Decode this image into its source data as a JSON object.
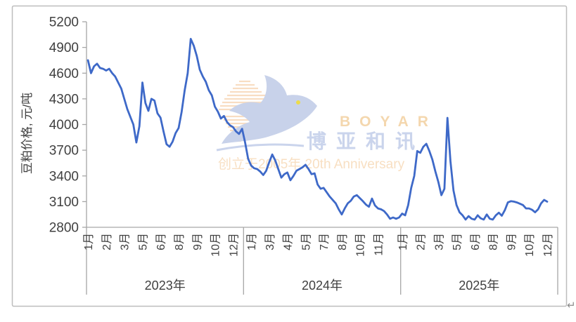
{
  "window": {
    "return_mark": "↵"
  },
  "watermark": {
    "brand_en": "BOYAR",
    "brand_cn": "博亚和讯",
    "anniversary": "创立于2005年 20th Anniversary"
  },
  "chart_data": {
    "type": "line",
    "title": "",
    "ylabel": "豆粕价格, 元/吨",
    "ylim": [
      2800,
      5200
    ],
    "y_ticks": [
      2800,
      3100,
      3400,
      3700,
      4000,
      4300,
      4600,
      4900,
      5200
    ],
    "grid": false,
    "legend": "none",
    "series_name": "豆粕价格",
    "colors": {
      "line": "#3E69C8",
      "axis": "#A6A6A6",
      "text": "#404040",
      "border": "#BDBDBD"
    },
    "years": [
      {
        "label": "2023年",
        "month_labels": [
          [
            "1月",
            1
          ],
          [
            "2月",
            7
          ],
          [
            "3月",
            13
          ],
          [
            "5月",
            19
          ],
          [
            "6月",
            25
          ],
          [
            "8月",
            31
          ],
          [
            "9月",
            37
          ],
          [
            "10月",
            43
          ],
          [
            "12月",
            49
          ]
        ],
        "weekly_values": [
          4750,
          4600,
          4680,
          4710,
          4660,
          4650,
          4630,
          4650,
          4600,
          4560,
          4490,
          4420,
          4300,
          4180,
          4090,
          4000,
          3790,
          3980,
          4490,
          4250,
          4160,
          4300,
          4280,
          4130,
          4080,
          3920,
          3770,
          3740,
          3800,
          3900,
          3960,
          4150,
          4400,
          4600,
          5000,
          4920,
          4800,
          4640,
          4560,
          4500,
          4400,
          4340,
          4210,
          4150,
          4070,
          4100,
          4030,
          3990,
          3970,
          3920,
          3890,
          3950
        ]
      },
      {
        "label": "2024年",
        "month_labels": [
          [
            "1月",
            3
          ],
          [
            "3月",
            9
          ],
          [
            "4月",
            15
          ],
          [
            "5月",
            21
          ],
          [
            "7月",
            27
          ],
          [
            "8月",
            33
          ],
          [
            "10月",
            39
          ],
          [
            "11月",
            45
          ]
        ],
        "weekly_values": [
          3790,
          3600,
          3520,
          3490,
          3480,
          3450,
          3410,
          3460,
          3560,
          3650,
          3580,
          3480,
          3380,
          3420,
          3440,
          3350,
          3400,
          3460,
          3480,
          3500,
          3530,
          3480,
          3420,
          3430,
          3300,
          3250,
          3260,
          3210,
          3160,
          3120,
          3080,
          3010,
          2950,
          3020,
          3080,
          3110,
          3160,
          3175,
          3140,
          3105,
          3065,
          3040,
          3135,
          3055,
          3020,
          3010,
          2990,
          2950,
          2900,
          2915,
          2900,
          2915
        ]
      },
      {
        "label": "2025年",
        "month_labels": [
          [
            "1月",
            1
          ],
          [
            "2月",
            7
          ],
          [
            "3月",
            13
          ],
          [
            "5月",
            19
          ],
          [
            "6月",
            25
          ],
          [
            "8月",
            31
          ],
          [
            "9月",
            37
          ],
          [
            "10月",
            43
          ],
          [
            "12月",
            49
          ]
        ],
        "weekly_values": [
          2960,
          2940,
          3060,
          3260,
          3400,
          3690,
          3670,
          3740,
          3775,
          3690,
          3590,
          3450,
          3325,
          3175,
          3250,
          4078,
          3570,
          3230,
          3060,
          2975,
          2940,
          2890,
          2930,
          2900,
          2890,
          2940,
          2905,
          2890,
          2950,
          2900,
          2890,
          2940,
          2970,
          2935,
          3000,
          3090,
          3105,
          3100,
          3090,
          3075,
          3060,
          3020,
          3020,
          3005,
          2975,
          3010,
          3080,
          3120,
          3100
        ]
      }
    ]
  }
}
